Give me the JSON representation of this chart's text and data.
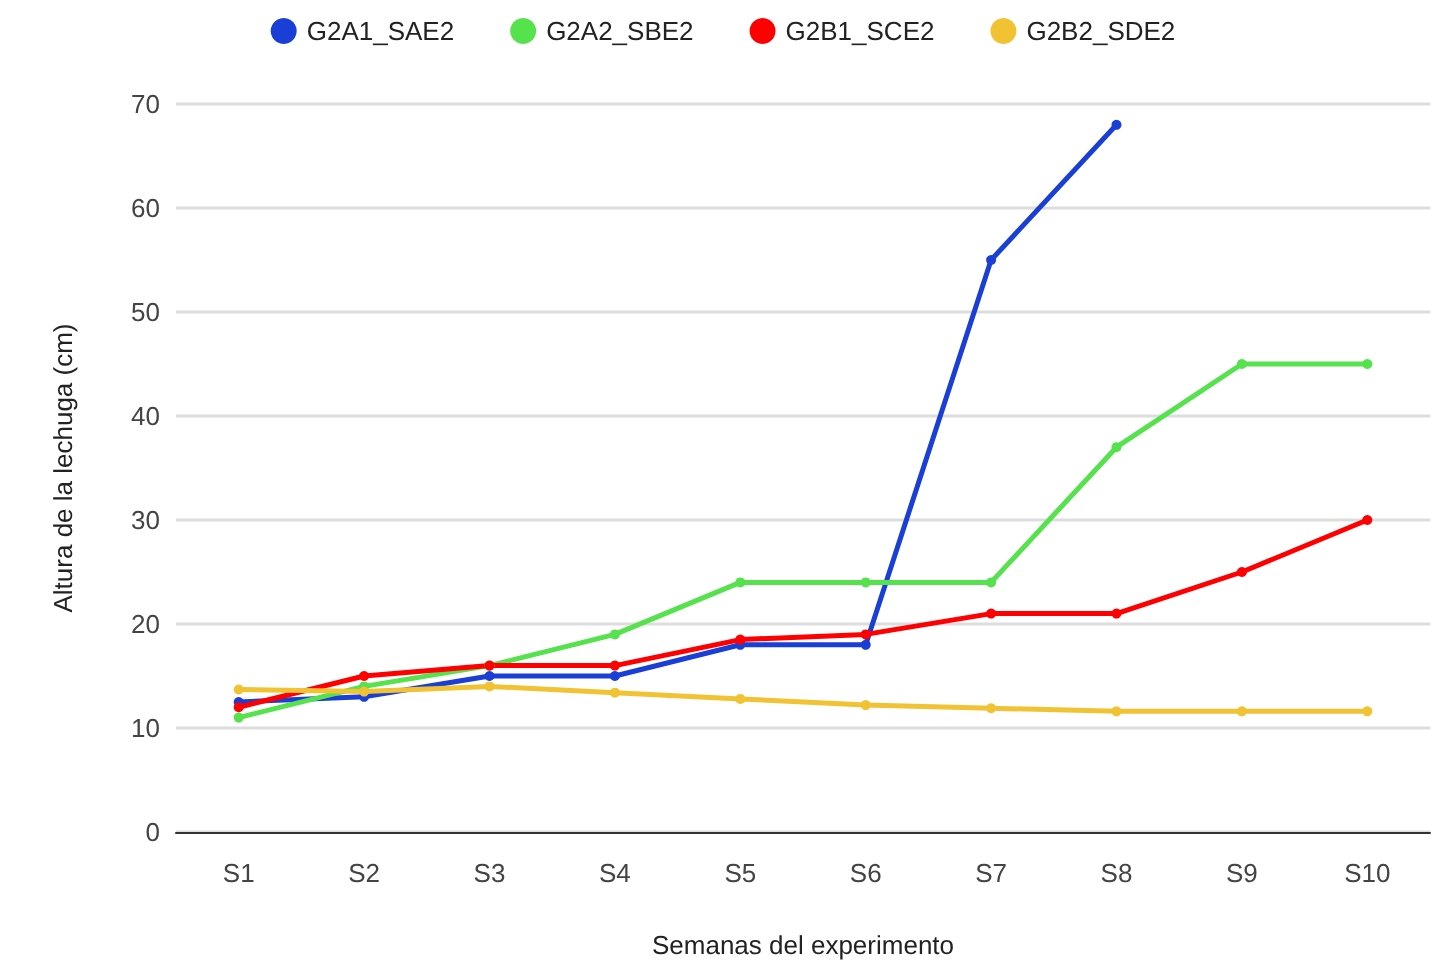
{
  "chart_data": {
    "type": "line",
    "xlabel": "Semanas del experimento",
    "ylabel": "Altura de la lechuga (cm)",
    "categories": [
      "S1",
      "S2",
      "S3",
      "S4",
      "S5",
      "S6",
      "S7",
      "S8",
      "S9",
      "S10"
    ],
    "series": [
      {
        "name": "G2A1_SAE2",
        "color": "#1a3fd6",
        "values": [
          12.5,
          13,
          15,
          15,
          18,
          18,
          55,
          68,
          null,
          null
        ]
      },
      {
        "name": "G2A2_SBE2",
        "color": "#55e24c",
        "values": [
          11,
          14,
          16,
          19,
          24,
          24,
          24,
          37,
          45,
          45
        ]
      },
      {
        "name": "G2B1_SCE2",
        "color": "#ff0000",
        "values": [
          12,
          15,
          16,
          16,
          18.5,
          19,
          21,
          21,
          25,
          30
        ]
      },
      {
        "name": "G2B2_SDE2",
        "color": "#f1c232",
        "values": [
          13.7,
          13.5,
          14,
          13.4,
          12.8,
          12.2,
          11.9,
          11.6,
          11.6,
          11.6
        ]
      }
    ],
    "ylim": [
      0,
      70
    ],
    "yticks": [
      0,
      10,
      20,
      30,
      40,
      50,
      60,
      70
    ],
    "grid": "y",
    "legend": "top",
    "marker": "circle",
    "line_style": "solid"
  }
}
